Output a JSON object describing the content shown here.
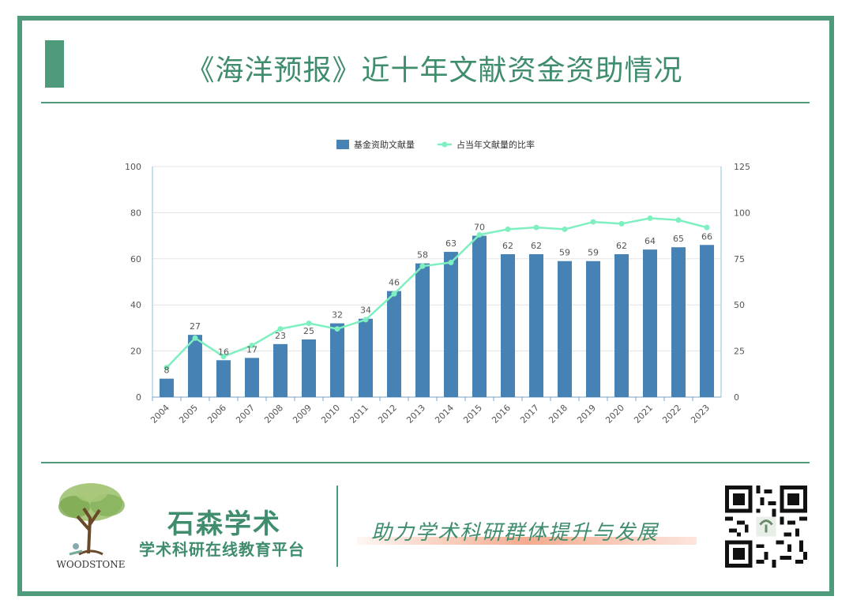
{
  "page": {
    "title": "《海洋预报》近十年文献资金资助情况"
  },
  "footer": {
    "logo_text": "WOODSTONE",
    "brand_name": "石森学术",
    "brand_sub": "学术科研在线教育平台",
    "slogan": "助力学术科研群体提升与发展"
  },
  "colors": {
    "accent": "#4e9a7a",
    "bar": "#4682b4",
    "line": "#7ef0c0"
  },
  "chart_data": {
    "type": "bar",
    "categories": [
      "2004",
      "2005",
      "2006",
      "2007",
      "2008",
      "2009",
      "2010",
      "2011",
      "2012",
      "2013",
      "2014",
      "2015",
      "2016",
      "2017",
      "2018",
      "2019",
      "2020",
      "2021",
      "2022",
      "2023"
    ],
    "series": [
      {
        "name": "基金资助文献量",
        "type": "bar",
        "axis": "left",
        "values": [
          8,
          27,
          16,
          17,
          23,
          25,
          32,
          34,
          46,
          58,
          63,
          70,
          62,
          62,
          59,
          59,
          62,
          64,
          65,
          66
        ]
      },
      {
        "name": "占当年文献量的比率",
        "type": "line",
        "axis": "right",
        "values": [
          16,
          32,
          22,
          28,
          37,
          40,
          37,
          42,
          56,
          71,
          73,
          88,
          91,
          92,
          91,
          95,
          94,
          97,
          96,
          92
        ]
      }
    ],
    "ylim": [
      0,
      100
    ],
    "y_ticks": [
      0,
      20,
      40,
      60,
      80,
      100
    ],
    "y2lim": [
      0,
      125
    ],
    "y2_ticks": [
      0,
      25,
      50,
      75,
      100,
      125
    ],
    "legend_position": "top-center",
    "grid": true
  }
}
